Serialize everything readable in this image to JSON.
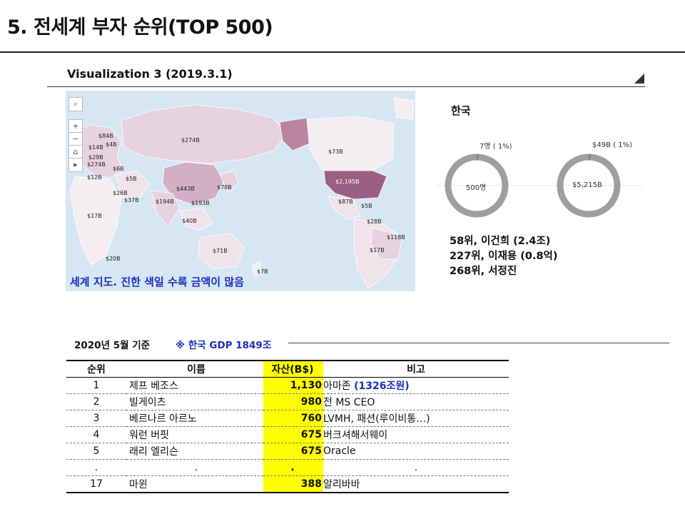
{
  "page": {
    "title": "5. 전세계 부자 순위(TOP 500)",
    "viz_title": "Visualization  3 (2019.3.1)"
  },
  "map": {
    "caption": "세계 지도. 진한 색일 수록 금액이 많음",
    "labels": [
      "$274B",
      "$73B",
      "$2,195B",
      "$443B",
      "$78B",
      "$194B",
      "$193B",
      "$40B",
      "$87B",
      "$5B",
      "$28B",
      "$118B",
      "$17B",
      "$71B",
      "$7B",
      "$20B",
      "$17B",
      "$26B",
      "$37B",
      "$5B",
      "$6B",
      "$84B",
      "$14B",
      "$4B",
      "$29B",
      "$274B",
      "$12B"
    ],
    "controls": [
      "⌕",
      "+",
      "−",
      "⌂",
      "▸"
    ],
    "colors": {
      "ocean": "#d7e6f3",
      "land": "#f4eef1",
      "low": "#e6d3dd",
      "mid": "#d2afc3",
      "high": "#b8849f",
      "top": "#9b5f81"
    }
  },
  "korea": {
    "title": "한국",
    "people": {
      "top_label": "7명 ( 1%)",
      "center": "500명",
      "share": 1
    },
    "assets": {
      "top_label": "$49B ( 1%)",
      "center": "$5,215B",
      "share": 1
    },
    "list": [
      "58위, 이건희 (2.4조)",
      "227위, 이재용 (0.8억)",
      "268위, 서정진"
    ]
  },
  "table": {
    "basis": "2020년 5월 기준",
    "gdp_note": "※ 한국 GDP 1849조",
    "headers": [
      "순위",
      "이름",
      "자산(B$)",
      "비고"
    ],
    "rows": [
      {
        "rank": "1",
        "name": "제프 베조스",
        "asset": "1,130",
        "note": "아마존 ",
        "note_extra": "(1326조원)"
      },
      {
        "rank": "2",
        "name": "빌게이츠",
        "asset": "980",
        "note": "전 MS CEO",
        "note_extra": ""
      },
      {
        "rank": "3",
        "name": "베르나르 아르노",
        "asset": "760",
        "note": "LVMH, 패션(루이비통…)",
        "note_extra": ""
      },
      {
        "rank": "4",
        "name": "워런 버핏",
        "asset": "675",
        "note": "버크셔해서웨이",
        "note_extra": ""
      },
      {
        "rank": "5",
        "name": "래리 엘리슨",
        "asset": "675",
        "note": "Oracle",
        "note_extra": ""
      },
      {
        "rank": ".",
        "name": ".",
        "asset": ".",
        "note": ".",
        "note_extra": ""
      },
      {
        "rank": "17",
        "name": "마윈",
        "asset": "388",
        "note": "알리바바",
        "note_extra": ""
      }
    ]
  }
}
